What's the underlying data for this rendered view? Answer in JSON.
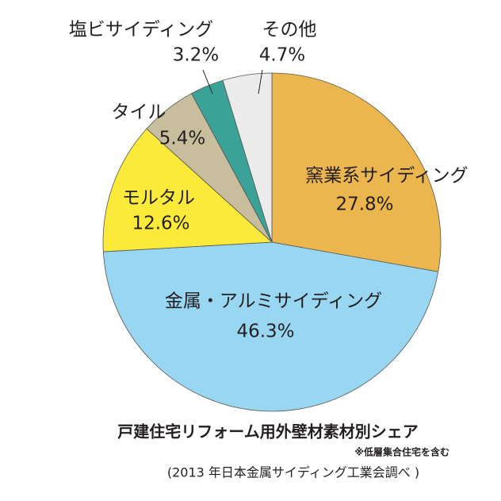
{
  "chart_data": {
    "type": "pie",
    "title": "戸建住宅リフォーム用外壁材素材別シェア",
    "note": "※低層集合住宅を含む",
    "source": "(2013 年日本金属サイディング工業会調べ )",
    "categories": [
      "窯業系サイディング",
      "金属・アルミサイディング",
      "モルタル",
      "タイル",
      "塩ビサイディング",
      "その他"
    ],
    "values": [
      27.8,
      46.3,
      12.6,
      5.4,
      3.2,
      4.7
    ],
    "value_labels": [
      "27.8%",
      "46.3%",
      "12.6%",
      "5.4%",
      "3.2%",
      "4.7%"
    ],
    "colors": [
      "#ebb64e",
      "#99d6f2",
      "#fbea3a",
      "#c8bd9c",
      "#3aa296",
      "#ececec"
    ]
  }
}
